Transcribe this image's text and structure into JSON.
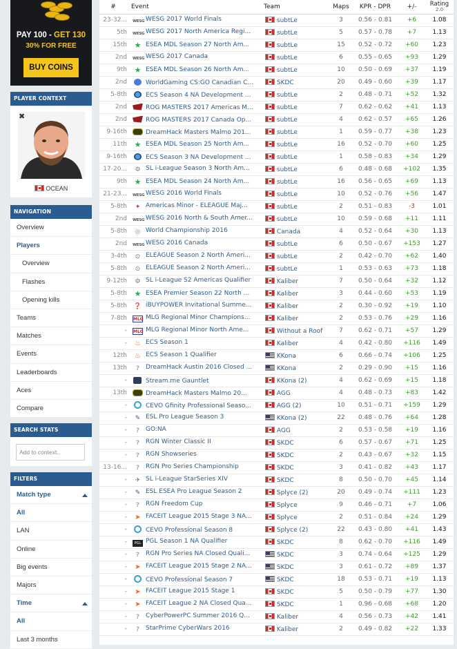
{
  "ad": {
    "line1_white": "PAY 100 - ",
    "line1_yellow": "GET 130",
    "line2": "30% FOR FREE",
    "button": "BUY COINS"
  },
  "player_context": {
    "header": "PLAYER CONTEXT",
    "remove": "✖",
    "nickname": "OCEAN",
    "flag": "ca"
  },
  "navigation": {
    "header": "NAVIGATION",
    "items": [
      "Overview",
      "Players",
      "Overview",
      "Flashes",
      "Opening kills",
      "Teams",
      "Matches",
      "Events",
      "Leaderboards",
      "Aces",
      "Compare"
    ]
  },
  "search_stats": {
    "header": "SEARCH STATS",
    "placeholder": "Add to context.."
  },
  "filters": {
    "header": "FILTERS",
    "match_type_label": "Match type",
    "match_types": [
      "All",
      "LAN",
      "Online",
      "Big events",
      "Majors"
    ],
    "time_label": "Time",
    "times": [
      "All",
      "Last 3 months"
    ]
  },
  "table": {
    "columns": {
      "date": "#",
      "event": "Event",
      "team": "Team",
      "maps": "Maps",
      "kpr": "KPR - DPR",
      "pm": "+/-",
      "rating": "Rating",
      "rating_ver": "2.0"
    },
    "rows": [
      {
        "date": "23-32...",
        "icon": "wesg",
        "event": "WESG 2017 World Finals",
        "flag": "ca",
        "team": "subtLe",
        "maps": "3",
        "kpr": "0.56 - 0.81",
        "pm": "+6",
        "rating": "1.08"
      },
      {
        "date": "5th",
        "icon": "wesg",
        "event": "WESG 2017 North America Regi...",
        "flag": "ca",
        "team": "subtLe",
        "maps": "5",
        "kpr": "0.57 - 0.78",
        "pm": "+7",
        "rating": "1.13"
      },
      {
        "date": "15th",
        "icon": "esea",
        "event": "ESEA MDL Season 27 North Am...",
        "flag": "ca",
        "team": "subtLe",
        "maps": "15",
        "kpr": "0.52 - 0.72",
        "pm": "+60",
        "rating": "1.23"
      },
      {
        "date": "2nd",
        "icon": "wesg",
        "event": "WESG 2017 Canada",
        "flag": "ca",
        "team": "subtLe",
        "maps": "6",
        "kpr": "0.55 - 0.65",
        "pm": "+93",
        "rating": "1.29"
      },
      {
        "date": "9th",
        "icon": "esea",
        "event": "ESEA MDL Season 26 North Am...",
        "flag": "ca",
        "team": "subtLe",
        "maps": "10",
        "kpr": "0.50 - 0.69",
        "pm": "+37",
        "rating": "1.19"
      },
      {
        "date": "2nd",
        "icon": "wg",
        "event": "WorldGaming CS:GO Canadian C...",
        "flag": "ca",
        "team": "SKDC",
        "maps": "20",
        "kpr": "0.49 - 0.60",
        "pm": "+39",
        "rating": "1.17"
      },
      {
        "date": "5-8th",
        "icon": "ecs",
        "event": "ECS Season 4 NA Development ...",
        "flag": "ca",
        "team": "subtLe",
        "maps": "2",
        "kpr": "0.48 - 0.71",
        "pm": "+52",
        "rating": "1.32"
      },
      {
        "date": "2nd",
        "icon": "rog",
        "event": "ROG MASTERS 2017 Americas M...",
        "flag": "ca",
        "team": "subtLe",
        "maps": "7",
        "kpr": "0.62 - 0.62",
        "pm": "+41",
        "rating": "1.13"
      },
      {
        "date": "2nd",
        "icon": "rog",
        "event": "ROG MASTERS 2017 Canada Op...",
        "flag": "ca",
        "team": "subtLe",
        "maps": "4",
        "kpr": "0.62 - 0.57",
        "pm": "+65",
        "rating": "1.26"
      },
      {
        "date": "9-16th",
        "icon": "dh",
        "event": "DreamHack Masters Malmo 201...",
        "flag": "ca",
        "team": "subtLe",
        "maps": "1",
        "kpr": "0.59 - 0.77",
        "pm": "+38",
        "rating": "1.23"
      },
      {
        "date": "11th",
        "icon": "esea",
        "event": "ESEA MDL Season 25 North Am...",
        "flag": "ca",
        "team": "subtLe",
        "maps": "16",
        "kpr": "0.52 - 0.70",
        "pm": "+60",
        "rating": "1.25"
      },
      {
        "date": "9-16th",
        "icon": "ecs",
        "event": "ECS Season 3 NA Development ...",
        "flag": "ca",
        "team": "subtLe",
        "maps": "1",
        "kpr": "0.58 - 0.83",
        "pm": "+34",
        "rating": "1.29"
      },
      {
        "date": "17-20...",
        "icon": "sl",
        "event": "SL i-League Season 3 North Am...",
        "flag": "ca",
        "team": "subtLe",
        "maps": "6",
        "kpr": "0.48 - 0.68",
        "pm": "+102",
        "rating": "1.35"
      },
      {
        "date": "9th",
        "icon": "esea",
        "event": "ESEA MDL Season 24 North Am...",
        "flag": "ca",
        "team": "subtLe",
        "maps": "16",
        "kpr": "0.56 - 0.65",
        "pm": "+69",
        "rating": "1.13"
      },
      {
        "date": "21-23...",
        "icon": "wesg",
        "event": "WESG 2016 World Finals",
        "flag": "ca",
        "team": "subtLe",
        "maps": "10",
        "kpr": "0.52 - 0.76",
        "pm": "+56",
        "rating": "1.47"
      },
      {
        "date": "5-8th",
        "icon": "am",
        "event": "Americas Minor - ELEAGUE Maj...",
        "flag": "ca",
        "team": "subtLe",
        "maps": "2",
        "kpr": "0.51 - 0.83",
        "pm": "-3",
        "rating": "1.01"
      },
      {
        "date": "2nd",
        "icon": "wesg",
        "event": "WESG 2016 North & South Amer...",
        "flag": "ca",
        "team": "subtLe",
        "maps": "10",
        "kpr": "0.59 - 0.68",
        "pm": "+11",
        "rating": "1.11"
      },
      {
        "date": "5-8th",
        "icon": "wc",
        "event": "World Championship 2016",
        "flag": "ca",
        "team": "Canada",
        "maps": "4",
        "kpr": "0.52 - 0.64",
        "pm": "+30",
        "rating": "1.13"
      },
      {
        "date": "2nd",
        "icon": "wesg",
        "event": "WESG 2016 Canada",
        "flag": "ca",
        "team": "subtLe",
        "maps": "6",
        "kpr": "0.50 - 0.67",
        "pm": "+153",
        "rating": "1.27"
      },
      {
        "date": "3-4th",
        "icon": "eleague",
        "event": "ELEAGUE Season 2 North Ameri...",
        "flag": "ca",
        "team": "subtLe",
        "maps": "2",
        "kpr": "0.42 - 0.70",
        "pm": "+62",
        "rating": "1.40"
      },
      {
        "date": "5-8th",
        "icon": "eleague",
        "event": "ELEAGUE Season 2 North Ameri...",
        "flag": "ca",
        "team": "subtLe",
        "maps": "1",
        "kpr": "0.53 - 0.63",
        "pm": "+73",
        "rating": "1.18"
      },
      {
        "date": "9-12th",
        "icon": "sl",
        "event": "SL i-League S2 Americas Qualifier",
        "flag": "ca",
        "team": "Kaliber",
        "maps": "7",
        "kpr": "0.50 - 0.64",
        "pm": "+32",
        "rating": "1.12"
      },
      {
        "date": "5-8th",
        "icon": "esea",
        "event": "ESEA Premier Season 22 North ...",
        "flag": "ca",
        "team": "Kaliber",
        "maps": "3",
        "kpr": "0.44 - 0.60",
        "pm": "+53",
        "rating": "1.19"
      },
      {
        "date": "5-8th",
        "icon": "ibp",
        "event": "iBUYPOWER Invitational Summe...",
        "flag": "ca",
        "team": "Kaliber",
        "maps": "2",
        "kpr": "0.30 - 0.92",
        "pm": "+19",
        "rating": "1.10"
      },
      {
        "date": "7-8th",
        "icon": "mlg",
        "event": "MLG Regional Minor Champions...",
        "flag": "ca",
        "team": "Kaliber",
        "maps": "2",
        "kpr": "0.53 - 0.76",
        "pm": "+29",
        "rating": "1.16"
      },
      {
        "date": "-",
        "icon": "mlg",
        "event": "MLG Regional Minor North Ame...",
        "flag": "ca",
        "team": "Without a Roof",
        "maps": "7",
        "kpr": "0.62 - 0.71",
        "pm": "+57",
        "rating": "1.29"
      },
      {
        "date": "-",
        "icon": "fire",
        "event": "ECS Season 1",
        "flag": "ca",
        "team": "Kaliber",
        "maps": "4",
        "kpr": "0.42 - 0.80",
        "pm": "+116",
        "rating": "1.49"
      },
      {
        "date": "12th",
        "icon": "fire",
        "event": "ECS Season 1 Qualifier",
        "flag": "us",
        "team": "KKona",
        "maps": "6",
        "kpr": "0.66 - 0.74",
        "pm": "+106",
        "rating": "1.25"
      },
      {
        "date": "13th",
        "icon": "q",
        "event": "DreamHack Austin 2016 Closed ...",
        "flag": "us",
        "team": "KKona",
        "maps": "2",
        "kpr": "0.29 - 0.90",
        "pm": "+15",
        "rating": "1.16"
      },
      {
        "date": "-",
        "icon": "stream",
        "event": "Stream.me Gauntlet",
        "flag": "ca",
        "team": "KKona (2)",
        "maps": "4",
        "kpr": "0.62 - 0.69",
        "pm": "+15",
        "rating": "1.18"
      },
      {
        "date": "13th",
        "icon": "dh",
        "event": "DreamHack Masters Malmo 20...",
        "flag": "ca",
        "team": "AGG",
        "maps": "4",
        "kpr": "0.48 - 0.73",
        "pm": "+83",
        "rating": "1.42"
      },
      {
        "date": "-",
        "icon": "cevo",
        "event": "CEVO Gfinity Professional Seaso...",
        "flag": "ca",
        "team": "AGG (2)",
        "maps": "10",
        "kpr": "0.51 - 0.71",
        "pm": "+159",
        "rating": "1.29"
      },
      {
        "date": "-",
        "icon": "esl",
        "event": "ESL Pro League Season 3",
        "flag": "us",
        "team": "KKona (2)",
        "maps": "22",
        "kpr": "0.48 - 0.76",
        "pm": "+64",
        "rating": "1.28"
      },
      {
        "date": "-",
        "icon": "q",
        "event": "GO:NA",
        "flag": "ca",
        "team": "AGG",
        "maps": "2",
        "kpr": "0.53 - 0.58",
        "pm": "+19",
        "rating": "1.16"
      },
      {
        "date": "-",
        "icon": "q",
        "event": "RGN Winter Classic II",
        "flag": "ca",
        "team": "SKDC",
        "maps": "6",
        "kpr": "0.57 - 0.67",
        "pm": "+71",
        "rating": "1.25"
      },
      {
        "date": "-",
        "icon": "q",
        "event": "RGN Showseries",
        "flag": "ca",
        "team": "SKDC",
        "maps": "2",
        "kpr": "0.43 - 0.67",
        "pm": "+32",
        "rating": "1.15"
      },
      {
        "date": "13-16...",
        "icon": "q",
        "event": "RGN Pro Series Championship",
        "flag": "ca",
        "team": "SKDC",
        "maps": "3",
        "kpr": "0.41 - 0.82",
        "pm": "+43",
        "rating": "1.17"
      },
      {
        "date": "-",
        "icon": "sl2",
        "event": "SL i-League StarSeries XIV",
        "flag": "ca",
        "team": "SKDC",
        "maps": "8",
        "kpr": "0.50 - 0.70",
        "pm": "+45",
        "rating": "1.14"
      },
      {
        "date": "-",
        "icon": "esl",
        "event": "ESL ESEA Pro League Season 2",
        "flag": "ca",
        "team": "Splyce (2)",
        "maps": "20",
        "kpr": "0.49 - 0.74",
        "pm": "+111",
        "rating": "1.23"
      },
      {
        "date": "-",
        "icon": "q",
        "event": "RGN Freedom Cup",
        "flag": "ca",
        "team": "Splyce",
        "maps": "9",
        "kpr": "0.46 - 0.71",
        "pm": "+7",
        "rating": "1.06"
      },
      {
        "date": "-",
        "icon": "faceit",
        "event": "FACEIT League 2015 Stage 3 NA...",
        "flag": "ca",
        "team": "Splyce",
        "maps": "2",
        "kpr": "0.51 - 0.84",
        "pm": "+24",
        "rating": "1.29"
      },
      {
        "date": "-",
        "icon": "cevo",
        "event": "CEVO Professional Season 8",
        "flag": "ca",
        "team": "Splyce (2)",
        "maps": "22",
        "kpr": "0.43 - 0.80",
        "pm": "+41",
        "rating": "1.43"
      },
      {
        "date": "-",
        "icon": "pgl",
        "event": "PGL Season 1 NA Qualifier",
        "flag": "ca",
        "team": "SKDC",
        "maps": "8",
        "kpr": "0.62 - 0.70",
        "pm": "+116",
        "rating": "1.49"
      },
      {
        "date": "-",
        "icon": "q",
        "event": "RGN Pro Series NA Closed Quali...",
        "flag": "us",
        "team": "SKDC",
        "maps": "3",
        "kpr": "0.74 - 0.64",
        "pm": "+125",
        "rating": "1.29"
      },
      {
        "date": "-",
        "icon": "faceit",
        "event": "FACEIT League 2015 Stage 2 NA...",
        "flag": "us",
        "team": "SKDC",
        "maps": "3",
        "kpr": "0.61 - 0.72",
        "pm": "+89",
        "rating": "1.37"
      },
      {
        "date": "-",
        "icon": "cevo",
        "event": "CEVO Professional Season 7",
        "flag": "us",
        "team": "SKDC",
        "maps": "18",
        "kpr": "0.53 - 0.71",
        "pm": "+19",
        "rating": "1.13"
      },
      {
        "date": "-",
        "icon": "faceit",
        "event": "FACEIT League 2015 Stage 1",
        "flag": "ca",
        "team": "SKDC",
        "maps": "5",
        "kpr": "0.50 - 0.79",
        "pm": "+77",
        "rating": "1.30"
      },
      {
        "date": "-",
        "icon": "faceit",
        "event": "FACEIT League 2 NA Closed Qua...",
        "flag": "ca",
        "team": "SKDC",
        "maps": "1",
        "kpr": "0.96 - 0.68",
        "pm": "+68",
        "rating": "1.20"
      },
      {
        "date": "-",
        "icon": "q",
        "event": "CyberPowerPC Summer 2016 Q...",
        "flag": "ca",
        "team": "Kaliber",
        "maps": "4",
        "kpr": "0.56 - 0.73",
        "pm": "+42",
        "rating": "1.41"
      },
      {
        "date": "-",
        "icon": "q",
        "event": "StarPrime CyberWars 2016",
        "flag": "ca",
        "team": "Kaliber",
        "maps": "2",
        "kpr": "0.49 - 0.82",
        "pm": "+22",
        "rating": "1.33"
      }
    ]
  },
  "icons": {
    "wesg": "wesg-icon",
    "esea": "esea-star-icon",
    "ecs": "ecs-icon",
    "wg": "worldgaming-icon",
    "rog": "rog-icon",
    "dh": "dreamhack-icon",
    "sl": "starladder-icon",
    "am": "americas-minor-icon",
    "wc": "world-championship-icon",
    "eleague": "eleague-icon",
    "ibp": "ibuypower-icon",
    "mlg": "mlg-icon",
    "q": "unknown-event-icon",
    "fire": "ecs-fire-icon",
    "stream": "streamme-icon",
    "cevo": "cevo-icon",
    "esl": "esl-icon",
    "sl2": "starladder-icon",
    "faceit": "faceit-icon",
    "pgl": "pgl-icon"
  },
  "colors": {
    "accent": "#2c5c8f",
    "positive": "#3c9a2a",
    "negative": "#d02a1c"
  }
}
